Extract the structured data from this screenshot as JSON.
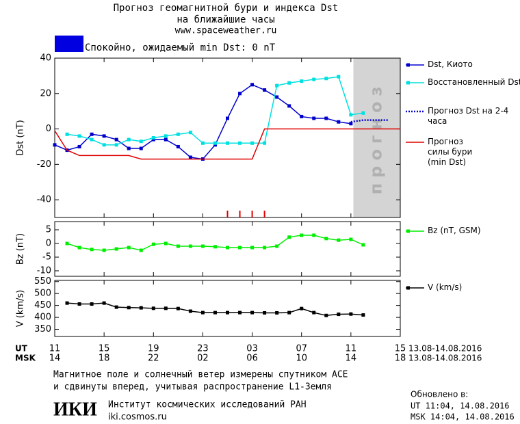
{
  "header": {
    "title": "Прогноз геомагнитной бури и индекса Dst",
    "subtitle": "на ближайшие часы",
    "url": "www.spaceweather.ru"
  },
  "chart_data": [
    {
      "type": "line",
      "ylabel": "Dst (nT)",
      "ylim": [
        -50,
        40
      ],
      "yticks": [
        -40,
        -20,
        0,
        20,
        40
      ],
      "status": {
        "text": "Спокойно, ожидаемый min Dst: 0 nT",
        "color": "#0000e0"
      },
      "forecast_region": [
        24.2,
        28
      ],
      "forecast_label": "прогноз",
      "storm_marks_x": [
        14,
        15,
        16,
        17
      ],
      "storm_marks_color": "#e00000",
      "series": [
        {
          "name": "Dst, Киото",
          "color": "#0000cc",
          "marker": "square",
          "x": [
            0,
            1,
            2,
            3,
            4,
            5,
            6,
            7,
            8,
            9,
            10,
            11,
            12,
            13,
            14,
            15,
            16,
            17,
            18,
            19,
            20,
            21,
            22,
            23,
            24
          ],
          "values": [
            -9,
            -12,
            -10,
            -3,
            -4,
            -6,
            -11,
            -11,
            -6,
            -6,
            -10,
            -16,
            -17,
            -9,
            6,
            20,
            25,
            22,
            18,
            13,
            7,
            6,
            6,
            4,
            3
          ]
        },
        {
          "name": "Восстановленный Dst",
          "color": "#00e0e0",
          "marker": "square",
          "x": [
            1,
            2,
            3,
            4,
            5,
            6,
            7,
            8,
            9,
            10,
            11,
            12,
            13,
            14,
            15,
            16,
            17,
            18,
            19,
            20,
            21,
            22,
            23,
            24,
            25
          ],
          "values": [
            -3,
            -4,
            -6,
            -9,
            -9,
            -6,
            -7,
            -5,
            -4,
            -3,
            -2,
            -8,
            -8,
            -8,
            -8,
            -8,
            -8,
            24.5,
            26,
            27,
            28,
            28.5,
            29.5,
            8,
            9
          ]
        },
        {
          "name": "Прогноз Dst на 2-4 часа",
          "color": "#0000cc",
          "dash": "dotted",
          "x": [
            24,
            25,
            26,
            27
          ],
          "values": [
            4,
            5,
            5,
            5
          ]
        },
        {
          "name": "Прогноз силы бури (min Dst)",
          "color": "#e00000",
          "x": [
            0,
            1,
            2,
            6,
            7,
            16,
            17,
            28
          ],
          "values": [
            -1,
            -12,
            -15,
            -15,
            -17,
            -17,
            0,
            0
          ]
        }
      ]
    },
    {
      "type": "line",
      "ylabel": "Bz (nT)",
      "ylim": [
        -12,
        8
      ],
      "yticks": [
        -10,
        -5,
        0,
        5
      ],
      "series": [
        {
          "name": "Bz (nT, GSM)",
          "color": "#00ee00",
          "marker": "square",
          "x": [
            1,
            2,
            3,
            4,
            5,
            6,
            7,
            8,
            9,
            10,
            11,
            12,
            13,
            14,
            15,
            16,
            17,
            18,
            19,
            20,
            21,
            22,
            23,
            24,
            25
          ],
          "values": [
            0,
            -1.5,
            -2.2,
            -2.5,
            -2,
            -1.5,
            -2.5,
            -0.3,
            0,
            -1,
            -1,
            -1,
            -1.2,
            -1.5,
            -1.5,
            -1.5,
            -1.5,
            -1,
            2.3,
            3,
            3,
            1.8,
            1.2,
            1.5,
            -0.5
          ]
        }
      ]
    },
    {
      "type": "line",
      "ylabel": "V (km/s)",
      "ylim": [
        320,
        555
      ],
      "yticks": [
        350,
        400,
        450,
        500,
        550
      ],
      "xlim": [
        0,
        28
      ],
      "xticks": [
        {
          "value": 0,
          "label": "11"
        },
        {
          "value": 4,
          "label": "15"
        },
        {
          "value": 8,
          "label": "19"
        },
        {
          "value": 12,
          "label": "23"
        },
        {
          "value": 16,
          "label": "03"
        },
        {
          "value": 20,
          "label": "07"
        },
        {
          "value": 24,
          "label": "11"
        },
        {
          "value": 28,
          "label": "15"
        }
      ],
      "xticks_msk": [
        {
          "value": 0,
          "label": "14"
        },
        {
          "value": 4,
          "label": "18"
        },
        {
          "value": 8,
          "label": "22"
        },
        {
          "value": 12,
          "label": "02"
        },
        {
          "value": 16,
          "label": "06"
        },
        {
          "value": 20,
          "label": "10"
        },
        {
          "value": 24,
          "label": "14"
        },
        {
          "value": 28,
          "label": "18"
        }
      ],
      "xrow_labels": [
        "UT",
        "MSK"
      ],
      "date_ranges": [
        "13.08-14.08.2016",
        "13.08-14.08.2016"
      ],
      "series": [
        {
          "name": "V (km/s)",
          "color": "#000000",
          "marker": "square",
          "x": [
            1,
            2,
            3,
            4,
            5,
            6,
            7,
            8,
            9,
            10,
            11,
            12,
            13,
            14,
            15,
            16,
            17,
            18,
            19,
            20,
            21,
            22,
            23,
            24,
            25
          ],
          "values": [
            460,
            456,
            456,
            460,
            443,
            441,
            440,
            438,
            438,
            437,
            426,
            420,
            420,
            420,
            420,
            420,
            419,
            419,
            420,
            437,
            420,
            408,
            413,
            414,
            410
          ]
        }
      ]
    }
  ],
  "footer": {
    "note": [
      "Магнитное поле и солнечный ветер измерены спутником ACE",
      "и сдвинуты вперед, учитывая распространение L1-Земля"
    ],
    "logo": "ИКИ",
    "institute": "Институт космических исследований РАН",
    "site": "iki.cosmos.ru",
    "updated": [
      "Обновлено в:",
      "UT  11:04, 14.08.2016",
      "MSK 14:04, 14.08.2016"
    ]
  }
}
